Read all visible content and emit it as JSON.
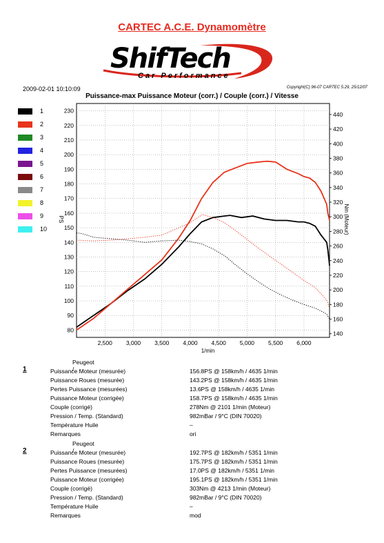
{
  "header": {
    "title": "CARTEC A.C.E. Dynamomètre",
    "logo_text": "ShifTech",
    "logo_subtext": "Car Performance",
    "date": "2009-02-01 10:10:09",
    "copyright": "Copyright(C) 96-07 CARTEC 5.29, 25/12/07"
  },
  "legend": [
    {
      "label": "1",
      "color": "#000000"
    },
    {
      "label": "2",
      "color": "#e8341c"
    },
    {
      "label": "3",
      "color": "#1f8a24"
    },
    {
      "label": "4",
      "color": "#2323e0"
    },
    {
      "label": "5",
      "color": "#7a1590"
    },
    {
      "label": "6",
      "color": "#7a0c0c"
    },
    {
      "label": "7",
      "color": "#8a8a8a"
    },
    {
      "label": "8",
      "color": "#f2f22a"
    },
    {
      "label": "9",
      "color": "#ee4fe8"
    },
    {
      "label": "10",
      "color": "#3ef0f0"
    }
  ],
  "chart_data": {
    "type": "line",
    "title": "Puissance-max Puissance Moteur (corr.) / Couple (corr.) / Vitesse",
    "xlabel": "1/min",
    "ylabel_left": "PS",
    "ylabel_right": "Nm (Moteur)",
    "xlim": [
      2000,
      6450
    ],
    "ylim_left": [
      75,
      235
    ],
    "ylim_right": [
      135,
      455
    ],
    "xticks": [
      "2,500",
      "3,000",
      "3,500",
      "4,000",
      "4,500",
      "5,000",
      "5,500",
      "6,000"
    ],
    "yticks_left": [
      "230",
      "220",
      "210",
      "200",
      "190",
      "180",
      "170",
      "160",
      "150",
      "140",
      "130",
      "120",
      "110",
      "100",
      "90",
      "80"
    ],
    "yticks_right": [
      "440",
      "420",
      "400",
      "380",
      "360",
      "340",
      "320",
      "300",
      "280",
      "260",
      "240",
      "220",
      "200",
      "180",
      "160",
      "140"
    ],
    "grid": true,
    "series": [
      {
        "name": "1",
        "kind": "power",
        "axis": "left",
        "style": "solid",
        "color": "#000000",
        "x": [
          2000,
          2300,
          2600,
          2900,
          3200,
          3500,
          3800,
          4000,
          4200,
          4400,
          4600,
          4700,
          4900,
          5100,
          5300,
          5500,
          5700,
          5900,
          6000,
          6100,
          6200,
          6300,
          6400,
          6420,
          6440,
          6450
        ],
        "y": [
          82,
          90,
          98,
          107,
          115,
          125,
          137,
          146,
          154,
          157,
          158,
          158.5,
          157,
          158,
          156,
          155,
          155,
          154,
          154,
          153,
          151,
          145,
          140,
          135,
          128,
          124
        ]
      },
      {
        "name": "2",
        "kind": "power",
        "axis": "left",
        "style": "solid",
        "color": "#e8341c",
        "x": [
          2000,
          2300,
          2600,
          2900,
          3200,
          3500,
          3800,
          4000,
          4200,
          4400,
          4600,
          4800,
          5000,
          5200,
          5350,
          5500,
          5700,
          5900,
          6000,
          6100,
          6200,
          6300,
          6400,
          6420,
          6450
        ],
        "y": [
          80,
          88,
          98,
          108,
          118,
          128,
          143,
          155,
          170,
          181,
          188,
          191,
          194,
          195,
          195.5,
          195,
          190,
          187,
          185,
          184,
          181,
          175,
          166,
          160,
          155
        ]
      },
      {
        "name": "1",
        "kind": "torque",
        "axis": "right",
        "style": "dotted",
        "color": "#000000",
        "x": [
          2000,
          2100,
          2300,
          2600,
          2900,
          3200,
          3500,
          3800,
          4000,
          4200,
          4400,
          4600,
          4800,
          5000,
          5200,
          5400,
          5600,
          5800,
          6000,
          6200,
          6400,
          6450
        ],
        "y": [
          278,
          277,
          272,
          270,
          268,
          265,
          267,
          268,
          266,
          263,
          256,
          247,
          234,
          222,
          211,
          201,
          193,
          186,
          180,
          175,
          167,
          160
        ]
      },
      {
        "name": "2",
        "kind": "torque",
        "axis": "right",
        "style": "dotted",
        "color": "#e8341c",
        "x": [
          2000,
          2300,
          2600,
          2900,
          3200,
          3500,
          3800,
          4000,
          4213,
          4400,
          4600,
          4800,
          5000,
          5200,
          5400,
          5600,
          5800,
          6000,
          6200,
          6400,
          6450
        ],
        "y": [
          268,
          267,
          268,
          270,
          272,
          275,
          285,
          292,
          303,
          299,
          292,
          281,
          269,
          257,
          246,
          235,
          224,
          213,
          203,
          186,
          175
        ]
      }
    ]
  },
  "runs": [
    {
      "number": "1",
      "brand": "Peugeot /",
      "rows": [
        {
          "label": "Puissance Moteur (mesurée)",
          "value": "156.8PS @ 158km/h / 4635 1/min"
        },
        {
          "label": "Puissance Roues (mesurée)",
          "value": "143.2PS @ 158km/h / 4635 1/min"
        },
        {
          "label": "Pertes Puissance (mesurées)",
          "value": "13.6PS @ 158km/h / 4635 1/min"
        },
        {
          "label": "Puissance Moteur (corrigée)",
          "value": "158.7PS @ 158km/h / 4635 1/min"
        },
        {
          "label": "Couple (corrigé)",
          "value": "278Nm @ 2101 1/min (Moteur)"
        },
        {
          "label": "Pression / Temp. (Standard)",
          "value": "982mBar / 9°C  (DIN 70020)"
        },
        {
          "label": "Température Huile",
          "value": "–"
        },
        {
          "label": "Remarques",
          "value": "ori"
        }
      ]
    },
    {
      "number": "2",
      "brand": "Peugeot /",
      "rows": [
        {
          "label": "Puissance Moteur (mesurée)",
          "value": "192.7PS @ 182km/h / 5351 1/min"
        },
        {
          "label": "Puissance Roues (mesurée)",
          "value": "175.7PS @ 182km/h / 5351 1/min"
        },
        {
          "label": "Pertes Puissance (mesurées)",
          "value": "17.0PS @ 182km/h / 5351 1/min"
        },
        {
          "label": "Puissance Moteur (corrigée)",
          "value": "195.1PS @ 182km/h / 5351 1/min"
        },
        {
          "label": "Couple (corrigé)",
          "value": "303Nm @ 4213 1/min (Moteur)"
        },
        {
          "label": "Pression / Temp. (Standard)",
          "value": "982mBar / 9°C  (DIN 70020)"
        },
        {
          "label": "Température Huile",
          "value": "–"
        },
        {
          "label": "Remarques",
          "value": "mod"
        }
      ]
    }
  ]
}
